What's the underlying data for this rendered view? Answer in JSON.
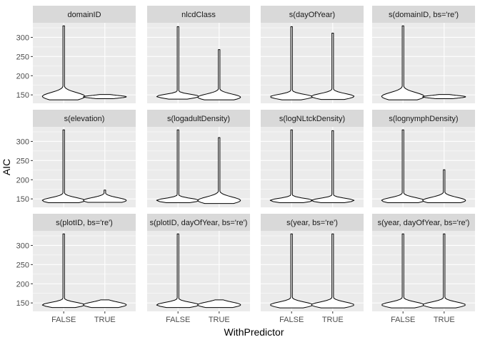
{
  "chart_data": {
    "type": "violin",
    "facet_layout": "3x4",
    "xlabel": "WithPredictor",
    "ylabel": "AIC",
    "categories": [
      "FALSE",
      "TRUE"
    ],
    "ylim": [
      128,
      338
    ],
    "yticks": [
      150,
      200,
      250,
      300
    ],
    "grid": true,
    "colors": {
      "panel_bg": "#ebebeb",
      "strip_bg": "#d9d9d9",
      "grid_major": "#ffffff",
      "violin_line": "#000000",
      "violin_fill": "#ffffff"
    },
    "facets": [
      {
        "title": "domainID",
        "violins": [
          {
            "category": "FALSE",
            "min": 137,
            "max": 330,
            "median": 146,
            "q1": 142,
            "q3": 153
          },
          {
            "category": "TRUE",
            "min": 140,
            "max": 151,
            "median": 145,
            "q1": 143,
            "q3": 147
          }
        ]
      },
      {
        "title": "nlcdClass",
        "violins": [
          {
            "category": "FALSE",
            "min": 139,
            "max": 328,
            "median": 146,
            "q1": 143,
            "q3": 149
          },
          {
            "category": "TRUE",
            "min": 137,
            "max": 268,
            "median": 144,
            "q1": 141,
            "q3": 150
          }
        ]
      },
      {
        "title": "s(dayOfYear)",
        "violins": [
          {
            "category": "FALSE",
            "min": 137,
            "max": 328,
            "median": 145,
            "q1": 142,
            "q3": 149
          },
          {
            "category": "TRUE",
            "min": 138,
            "max": 311,
            "median": 146,
            "q1": 142,
            "q3": 150
          }
        ]
      },
      {
        "title": "s(domainID, bs='re')",
        "violins": [
          {
            "category": "FALSE",
            "min": 137,
            "max": 330,
            "median": 146,
            "q1": 142,
            "q3": 153
          },
          {
            "category": "TRUE",
            "min": 140,
            "max": 151,
            "median": 145,
            "q1": 143,
            "q3": 147
          }
        ]
      },
      {
        "title": "s(elevation)",
        "violins": [
          {
            "category": "FALSE",
            "min": 140,
            "max": 330,
            "median": 146,
            "q1": 143,
            "q3": 151
          },
          {
            "category": "TRUE",
            "min": 141,
            "max": 173,
            "median": 146,
            "q1": 143,
            "q3": 151
          }
        ]
      },
      {
        "title": "s(logadultDensity)",
        "violins": [
          {
            "category": "FALSE",
            "min": 140,
            "max": 330,
            "median": 146,
            "q1": 143,
            "q3": 149
          },
          {
            "category": "TRUE",
            "min": 138,
            "max": 310,
            "median": 146,
            "q1": 142,
            "q3": 152
          }
        ]
      },
      {
        "title": "s(logNLtckDensity)",
        "violins": [
          {
            "category": "FALSE",
            "min": 140,
            "max": 330,
            "median": 146,
            "q1": 143,
            "q3": 149
          },
          {
            "category": "TRUE",
            "min": 140,
            "max": 328,
            "median": 146,
            "q1": 143,
            "q3": 149
          }
        ]
      },
      {
        "title": "s(lognymphDensity)",
        "violins": [
          {
            "category": "FALSE",
            "min": 140,
            "max": 330,
            "median": 146,
            "q1": 143,
            "q3": 151
          },
          {
            "category": "TRUE",
            "min": 140,
            "max": 226,
            "median": 146,
            "q1": 143,
            "q3": 152
          }
        ]
      },
      {
        "title": "s(plotID, bs='re')",
        "violins": [
          {
            "category": "FALSE",
            "min": 138,
            "max": 330,
            "median": 145,
            "q1": 142,
            "q3": 149
          },
          {
            "category": "TRUE",
            "min": 138,
            "max": 158,
            "median": 145,
            "q1": 142,
            "q3": 150
          }
        ]
      },
      {
        "title": "s(plotID, dayOfYear, bs='re')",
        "violins": [
          {
            "category": "FALSE",
            "min": 138,
            "max": 330,
            "median": 145,
            "q1": 142,
            "q3": 149
          },
          {
            "category": "TRUE",
            "min": 138,
            "max": 158,
            "median": 145,
            "q1": 142,
            "q3": 150
          }
        ]
      },
      {
        "title": "s(year, bs='re')",
        "violins": [
          {
            "category": "FALSE",
            "min": 137,
            "max": 330,
            "median": 145,
            "q1": 141,
            "q3": 149
          },
          {
            "category": "TRUE",
            "min": 137,
            "max": 330,
            "median": 145,
            "q1": 141,
            "q3": 149
          }
        ]
      },
      {
        "title": "s(year, dayOfYear, bs='re')",
        "violins": [
          {
            "category": "FALSE",
            "min": 137,
            "max": 330,
            "median": 145,
            "q1": 141,
            "q3": 149
          },
          {
            "category": "TRUE",
            "min": 137,
            "max": 330,
            "median": 145,
            "q1": 141,
            "q3": 149
          }
        ]
      }
    ]
  }
}
